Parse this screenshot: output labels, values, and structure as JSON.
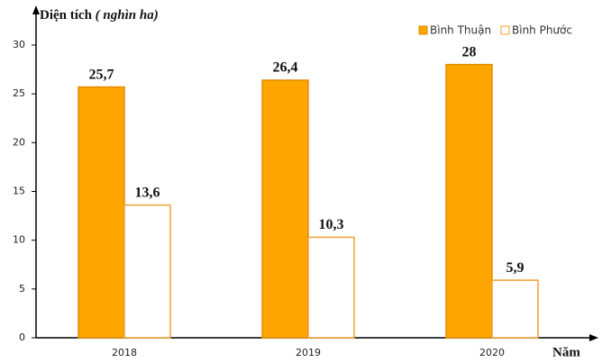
{
  "chart_data": {
    "type": "bar",
    "ylabel": "Diện tích",
    "ylabel_unit": "( nghìn ha)",
    "xlabel": "Năm",
    "categories": [
      "2018",
      "2019",
      "2020"
    ],
    "series": [
      {
        "name": "Bình Thuận",
        "color": "#ffa500",
        "values": [
          25.7,
          26.4,
          28
        ],
        "value_labels": [
          "25,7",
          "26,4",
          "28"
        ]
      },
      {
        "name": "Bình Phước",
        "color": "#ffffff",
        "values": [
          13.6,
          10.3,
          5.9
        ],
        "value_labels": [
          "13,6",
          "10,3",
          "5,9"
        ]
      }
    ],
    "ylim": [
      0,
      30
    ],
    "yticks": [
      0,
      5,
      10,
      15,
      20,
      25,
      30
    ],
    "legend": "top-right"
  }
}
